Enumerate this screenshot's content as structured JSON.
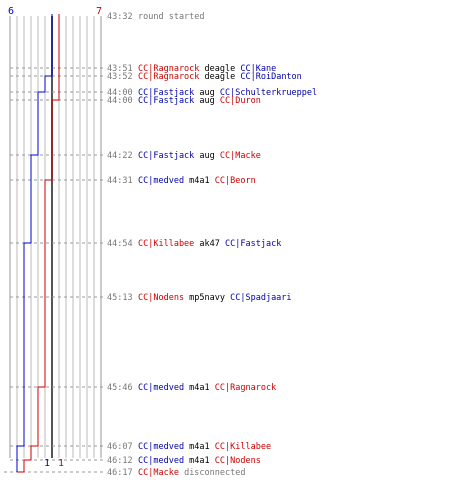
{
  "colors": {
    "blue_team": "#0000cc",
    "red_team": "#cc0000",
    "time_text": "#777777",
    "grid": "#bbbbbb",
    "dash": "#999999",
    "frame": "#999999",
    "center_line": "#555555"
  },
  "scores": {
    "blue_start": "6",
    "red_start": "7",
    "blue_end": "1",
    "red_end": "1"
  },
  "team_tracks": {
    "blue": [
      6,
      6,
      5,
      4,
      4,
      3,
      3,
      2,
      2,
      2,
      1,
      1,
      1,
      1
    ],
    "red": [
      7,
      7,
      7,
      7,
      6,
      6,
      5,
      5,
      5,
      4,
      3,
      2,
      1,
      1
    ]
  },
  "events": [
    {
      "time": "43:32",
      "parts": [
        {
          "text": "round started",
          "color": "gray"
        }
      ]
    },
    {
      "time": "43:51",
      "parts": [
        {
          "text": "CC|Ragnarock",
          "color": "red"
        },
        {
          "text": " deagle ",
          "color": "black"
        },
        {
          "text": "CC|Kane",
          "color": "blue"
        }
      ]
    },
    {
      "time": "43:52",
      "parts": [
        {
          "text": "CC|Ragnarock",
          "color": "red"
        },
        {
          "text": " deagle ",
          "color": "black"
        },
        {
          "text": "CC|RoiDanton",
          "color": "blue"
        }
      ]
    },
    {
      "time": "44:00",
      "parts": [
        {
          "text": "CC|Fastjack",
          "color": "blue"
        },
        {
          "text": " aug ",
          "color": "black"
        },
        {
          "text": "CC|Schulterkrueppel",
          "color": "blue"
        }
      ]
    },
    {
      "time": "44:00",
      "parts": [
        {
          "text": "CC|Fastjack",
          "color": "blue"
        },
        {
          "text": " aug ",
          "color": "black"
        },
        {
          "text": "CC|Duron",
          "color": "red"
        }
      ]
    },
    {
      "time": "44:22",
      "parts": [
        {
          "text": "CC|Fastjack",
          "color": "blue"
        },
        {
          "text": " aug ",
          "color": "black"
        },
        {
          "text": "CC|Macke",
          "color": "red"
        }
      ]
    },
    {
      "time": "44:31",
      "parts": [
        {
          "text": "CC|medved",
          "color": "blue"
        },
        {
          "text": " m4a1 ",
          "color": "black"
        },
        {
          "text": "CC|Beorn",
          "color": "red"
        }
      ]
    },
    {
      "time": "44:54",
      "parts": [
        {
          "text": "CC|Killabee",
          "color": "red"
        },
        {
          "text": " ak47 ",
          "color": "black"
        },
        {
          "text": "CC|Fastjack",
          "color": "blue"
        }
      ]
    },
    {
      "time": "45:13",
      "parts": [
        {
          "text": "CC|Nodens",
          "color": "red"
        },
        {
          "text": " mp5navy ",
          "color": "black"
        },
        {
          "text": "CC|Spadjaari",
          "color": "blue"
        }
      ]
    },
    {
      "time": "45:46",
      "parts": [
        {
          "text": "CC|medved",
          "color": "blue"
        },
        {
          "text": " m4a1 ",
          "color": "black"
        },
        {
          "text": "CC|Ragnarock",
          "color": "red"
        }
      ]
    },
    {
      "time": "46:07",
      "parts": [
        {
          "text": "CC|medved",
          "color": "blue"
        },
        {
          "text": " m4a1 ",
          "color": "black"
        },
        {
          "text": "CC|Killabee",
          "color": "red"
        }
      ]
    },
    {
      "time": "46:12",
      "parts": [
        {
          "text": "CC|medved",
          "color": "blue"
        },
        {
          "text": " m4a1 ",
          "color": "black"
        },
        {
          "text": "CC|Nodens",
          "color": "red"
        }
      ]
    },
    {
      "time": "46:17",
      "parts": [
        {
          "text": "CC|Macke",
          "color": "red"
        },
        {
          "text": " disconnected",
          "color": "gray"
        }
      ]
    }
  ]
}
